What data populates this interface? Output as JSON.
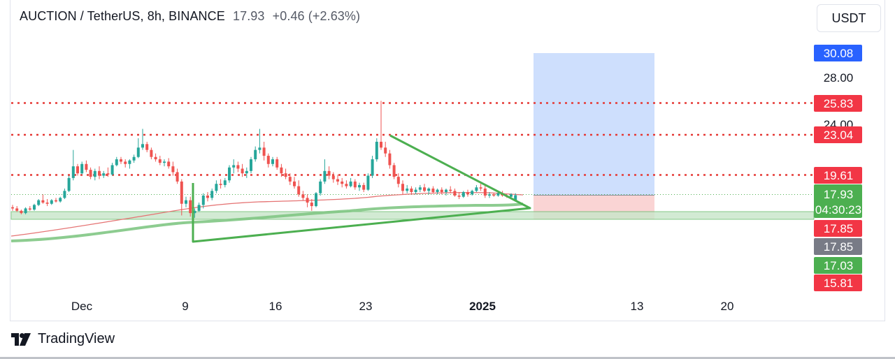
{
  "header": {
    "symbol": "AUCTION / TetherUS, 8h, BINANCE",
    "price": "17.93",
    "change": "+0.46 (+2.63%)"
  },
  "currency_button": {
    "label": "USDT"
  },
  "brand": {
    "name": "TradingView",
    "logo_icon": "tradingview-logo-icon"
  },
  "chart_data": {
    "type": "candlestick",
    "symbol": "AUCTION/USDT",
    "interval": "8h",
    "exchange": "BINANCE",
    "x_ticks": [
      "Dec",
      "9",
      "16",
      "23",
      "2025",
      "13",
      "20"
    ],
    "y_ticks": [
      "28.00",
      "24.00"
    ],
    "price_labels": [
      {
        "value": "30.08",
        "color": "#2962ff"
      },
      {
        "value": "25.83",
        "color": "#f23645"
      },
      {
        "value": "23.04",
        "color": "#f23645"
      },
      {
        "value": "19.61",
        "color": "#f23645"
      },
      {
        "value": "17.93",
        "sub": "04:30:23",
        "color": "#4caf50"
      },
      {
        "value": "17.85",
        "color": "#f23645"
      },
      {
        "value": "17.85",
        "color": "#787b86"
      },
      {
        "value": "17.03",
        "color": "#4caf50"
      },
      {
        "value": "15.81",
        "color": "#f23645"
      }
    ],
    "resistance_levels": [
      25.83,
      23.04,
      19.61
    ],
    "support_zone": [
      17.03,
      17.85
    ],
    "current_price": 17.93,
    "long_position": {
      "entry": 17.93,
      "target": 30.08,
      "stop": 17.03
    },
    "colors": {
      "up": "#26a69a",
      "down": "#ef5350",
      "resistance": "#e53935",
      "support": "#4caf50",
      "target": "#c9dbfd",
      "stop": "#fad4d4",
      "ma": "#e57373"
    },
    "candles": [
      [
        16.9,
        17.1,
        16.6,
        16.8
      ],
      [
        16.8,
        17.0,
        16.5,
        16.6
      ],
      [
        16.6,
        16.7,
        16.3,
        16.4
      ],
      [
        16.4,
        16.9,
        16.3,
        16.8
      ],
      [
        16.8,
        17.0,
        16.6,
        16.7
      ],
      [
        16.7,
        17.2,
        16.6,
        17.1
      ],
      [
        17.1,
        17.6,
        17.0,
        17.5
      ],
      [
        17.5,
        18.0,
        17.2,
        17.3
      ],
      [
        17.3,
        17.6,
        17.0,
        17.2
      ],
      [
        17.2,
        17.6,
        17.1,
        17.5
      ],
      [
        17.5,
        17.7,
        17.3,
        17.4
      ],
      [
        17.4,
        17.8,
        17.3,
        17.7
      ],
      [
        17.7,
        18.5,
        17.6,
        18.3
      ],
      [
        18.3,
        19.6,
        18.2,
        19.4
      ],
      [
        19.4,
        21.8,
        19.2,
        20.4
      ],
      [
        20.4,
        20.6,
        19.6,
        19.8
      ],
      [
        19.8,
        20.8,
        19.7,
        20.6
      ],
      [
        20.6,
        20.9,
        19.9,
        20.1
      ],
      [
        20.1,
        20.3,
        19.3,
        19.5
      ],
      [
        19.5,
        20.2,
        19.2,
        20.0
      ],
      [
        20.0,
        20.4,
        19.3,
        19.6
      ],
      [
        19.6,
        20.0,
        19.4,
        19.8
      ],
      [
        19.8,
        20.3,
        19.5,
        19.7
      ],
      [
        19.7,
        20.7,
        19.6,
        20.5
      ],
      [
        20.5,
        21.2,
        20.4,
        21.0
      ],
      [
        21.0,
        21.2,
        20.6,
        20.8
      ],
      [
        20.8,
        21.0,
        20.3,
        20.6
      ],
      [
        20.6,
        21.0,
        20.2,
        20.9
      ],
      [
        20.9,
        21.4,
        20.7,
        21.2
      ],
      [
        21.2,
        22.8,
        21.1,
        22.0
      ],
      [
        22.0,
        23.6,
        21.8,
        22.3
      ],
      [
        22.3,
        22.5,
        21.6,
        21.8
      ],
      [
        21.8,
        22.0,
        21.0,
        21.2
      ],
      [
        21.2,
        21.5,
        20.8,
        21.0
      ],
      [
        21.0,
        21.3,
        20.5,
        20.7
      ],
      [
        20.7,
        21.0,
        20.4,
        20.8
      ],
      [
        20.8,
        21.1,
        20.2,
        20.4
      ],
      [
        20.4,
        20.8,
        19.6,
        19.9
      ],
      [
        19.9,
        20.2,
        18.9,
        19.1
      ],
      [
        19.1,
        19.3,
        16.2,
        17.2
      ],
      [
        17.2,
        17.8,
        16.9,
        17.5
      ],
      [
        17.5,
        17.8,
        16.1,
        16.4
      ],
      [
        16.4,
        16.8,
        16.0,
        16.6
      ],
      [
        16.6,
        17.3,
        16.5,
        17.1
      ],
      [
        17.1,
        18.1,
        16.8,
        17.9
      ],
      [
        17.9,
        18.2,
        17.4,
        17.7
      ],
      [
        17.7,
        18.5,
        17.5,
        18.3
      ],
      [
        18.3,
        19.2,
        18.1,
        18.9
      ],
      [
        18.9,
        19.3,
        18.5,
        18.8
      ],
      [
        18.8,
        19.4,
        18.6,
        19.2
      ],
      [
        19.2,
        20.5,
        19.0,
        20.3
      ],
      [
        20.3,
        21.0,
        19.8,
        20.5
      ],
      [
        20.5,
        20.8,
        19.9,
        20.2
      ],
      [
        20.2,
        20.6,
        19.5,
        19.8
      ],
      [
        19.8,
        20.3,
        19.4,
        20.0
      ],
      [
        20.0,
        21.2,
        19.8,
        21.0
      ],
      [
        21.0,
        22.1,
        20.8,
        21.8
      ],
      [
        21.8,
        23.6,
        21.5,
        22.0
      ],
      [
        22.0,
        22.5,
        20.9,
        21.3
      ],
      [
        21.3,
        21.5,
        20.3,
        20.6
      ],
      [
        20.6,
        21.2,
        20.4,
        21.0
      ],
      [
        21.0,
        21.2,
        20.1,
        20.3
      ],
      [
        20.3,
        20.6,
        19.5,
        19.8
      ],
      [
        19.8,
        20.2,
        19.3,
        19.5
      ],
      [
        19.5,
        19.8,
        18.8,
        19.1
      ],
      [
        19.1,
        19.5,
        18.5,
        18.7
      ],
      [
        18.7,
        19.2,
        17.8,
        18.0
      ],
      [
        18.0,
        18.3,
        17.5,
        17.7
      ],
      [
        17.7,
        18.0,
        16.9,
        17.3
      ],
      [
        17.3,
        17.6,
        16.6,
        17.0
      ],
      [
        17.0,
        18.2,
        16.9,
        18.1
      ],
      [
        18.1,
        19.3,
        17.9,
        19.1
      ],
      [
        19.1,
        21.0,
        18.9,
        20.0
      ],
      [
        20.0,
        20.4,
        19.3,
        19.6
      ],
      [
        19.6,
        19.9,
        19.0,
        19.3
      ],
      [
        19.3,
        19.7,
        18.8,
        19.1
      ],
      [
        19.1,
        19.4,
        18.6,
        18.9
      ],
      [
        18.9,
        19.2,
        18.5,
        18.7
      ],
      [
        18.7,
        19.4,
        18.6,
        19.1
      ],
      [
        19.1,
        19.3,
        18.4,
        18.6
      ],
      [
        18.6,
        19.0,
        18.3,
        18.8
      ],
      [
        18.8,
        19.0,
        18.2,
        18.4
      ],
      [
        18.4,
        19.8,
        18.3,
        19.6
      ],
      [
        19.6,
        21.3,
        19.4,
        21.0
      ],
      [
        21.0,
        22.8,
        20.8,
        22.5
      ],
      [
        22.5,
        26.0,
        21.8,
        22.0
      ],
      [
        22.0,
        22.5,
        21.2,
        21.5
      ],
      [
        21.5,
        21.8,
        20.2,
        20.5
      ],
      [
        20.5,
        20.7,
        19.3,
        19.5
      ],
      [
        19.5,
        19.8,
        18.6,
        18.9
      ],
      [
        18.9,
        19.2,
        18.0,
        18.3
      ],
      [
        18.3,
        18.8,
        18.1,
        18.5
      ],
      [
        18.5,
        18.7,
        18.0,
        18.2
      ],
      [
        18.2,
        18.6,
        18.0,
        18.4
      ],
      [
        18.4,
        18.8,
        18.2,
        18.6
      ],
      [
        18.6,
        18.9,
        18.2,
        18.3
      ],
      [
        18.3,
        18.6,
        18.0,
        18.5
      ],
      [
        18.5,
        18.7,
        18.1,
        18.2
      ],
      [
        18.2,
        18.5,
        18.0,
        18.4
      ],
      [
        18.4,
        18.6,
        18.0,
        18.2
      ],
      [
        18.2,
        18.5,
        17.9,
        18.4
      ],
      [
        18.4,
        18.7,
        18.1,
        18.3
      ],
      [
        18.3,
        18.5,
        17.8,
        17.9
      ],
      [
        17.9,
        18.2,
        17.6,
        17.8
      ],
      [
        17.8,
        18.3,
        17.7,
        18.2
      ],
      [
        18.2,
        18.4,
        17.8,
        18.0
      ],
      [
        18.0,
        18.4,
        17.9,
        18.3
      ],
      [
        18.3,
        18.8,
        18.2,
        18.6
      ],
      [
        18.6,
        18.9,
        18.3,
        18.5
      ],
      [
        18.5,
        18.8,
        17.7,
        17.9
      ],
      [
        17.9,
        18.2,
        17.7,
        18.0
      ],
      [
        18.0,
        18.1,
        17.8,
        17.9
      ],
      [
        17.9,
        18.2,
        17.8,
        18.1
      ],
      [
        18.1,
        18.3,
        17.8,
        17.9
      ],
      [
        17.9,
        18.0,
        17.7,
        17.8
      ],
      [
        17.8,
        18.1,
        17.7,
        18.0
      ],
      [
        17.47,
        18.1,
        17.4,
        17.93
      ]
    ]
  }
}
